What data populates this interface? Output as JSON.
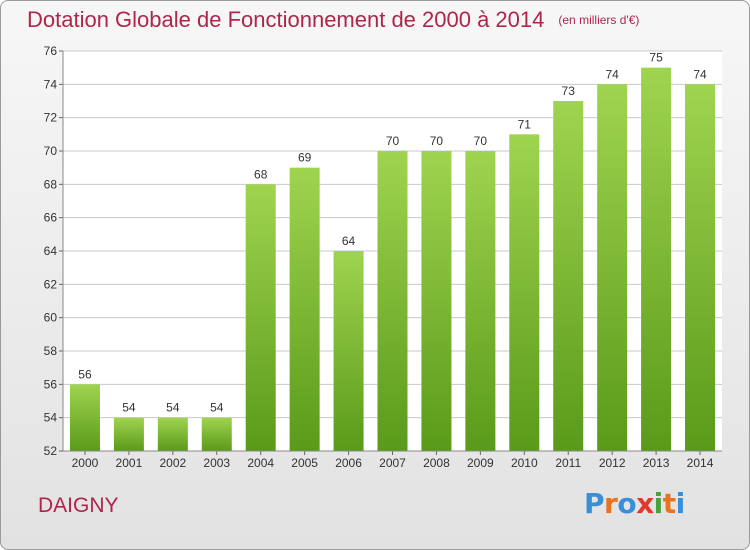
{
  "header": {
    "title": "Dotation Globale de Fonctionnement de 2000 à 2014",
    "unit": "(en milliers d'€)"
  },
  "footer": {
    "commune": "DAIGNY",
    "brand_letters": [
      "P",
      "r",
      "o",
      "x",
      "i",
      "t",
      "i"
    ],
    "brand_colors": [
      "#3b8fd6",
      "#e8731f",
      "#3b8fd6",
      "#e23a2a",
      "#4aa13b",
      "#e8731f",
      "#3b8fd6"
    ]
  },
  "colors": {
    "title": "#b0254a",
    "bar_top": "#9fd44f",
    "bar_bottom": "#5a9a1a",
    "grid": "#c8c8c8",
    "axis_text": "#333333"
  },
  "chart_data": {
    "type": "bar",
    "categories": [
      "2000",
      "2001",
      "2002",
      "2003",
      "2004",
      "2005",
      "2006",
      "2007",
      "2008",
      "2009",
      "2010",
      "2011",
      "2012",
      "2013",
      "2014"
    ],
    "values": [
      56,
      54,
      54,
      54,
      68,
      69,
      64,
      70,
      70,
      70,
      71,
      73,
      74,
      75,
      74
    ],
    "yticks": [
      52,
      54,
      56,
      58,
      60,
      62,
      64,
      66,
      68,
      70,
      72,
      74,
      76
    ],
    "ylim": [
      52,
      76
    ],
    "grid": true,
    "title": "Dotation Globale de Fonctionnement de 2000 à 2014",
    "xlabel": "",
    "ylabel": ""
  }
}
